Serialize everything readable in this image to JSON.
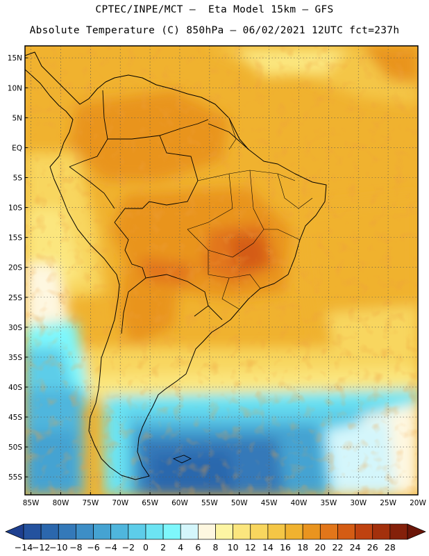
{
  "header": {
    "line1": "CPTEC/INPE/MCT –  Eta Model 15km – GFS",
    "line2": "Absolute Temperature (C) 850hPa – 06/02/2021 12UTC fct=237h"
  },
  "map": {
    "lat_labels": [
      "15N",
      "10N",
      "5N",
      "EQ",
      "5S",
      "10S",
      "15S",
      "20S",
      "25S",
      "30S",
      "35S",
      "40S",
      "45S",
      "50S",
      "55S"
    ],
    "lon_labels": [
      "85W",
      "80W",
      "75W",
      "70W",
      "65W",
      "60W",
      "55W",
      "50W",
      "45W",
      "40W",
      "35W",
      "30W",
      "25W",
      "20W"
    ],
    "lat_values": [
      15,
      10,
      5,
      0,
      -5,
      -10,
      -15,
      -20,
      -25,
      -30,
      -35,
      -40,
      -45,
      -50,
      -55
    ],
    "lon_values": [
      -85,
      -80,
      -75,
      -70,
      -65,
      -60,
      -55,
      -50,
      -45,
      -40,
      -35,
      -30,
      -25,
      -20
    ],
    "extent": {
      "lon_min": -86,
      "lon_max": -20,
      "lat_min": -58,
      "lat_max": 17
    }
  },
  "colorbar": {
    "labels": [
      "-14",
      "-12",
      "-10",
      "-8",
      "-6",
      "-4",
      "-2",
      "0",
      "2",
      "4",
      "6",
      "8",
      "10",
      "12",
      "14",
      "16",
      "18",
      "20",
      "22",
      "24",
      "26",
      "28"
    ],
    "colors": [
      "#1e3f8f",
      "#24529e",
      "#2b67ad",
      "#3479b9",
      "#3d8ec6",
      "#45a3d2",
      "#4fb6dd",
      "#5dcde9",
      "#6ce4f3",
      "#7ef7fc",
      "#d4f6fb",
      "#fef7e0",
      "#fdf5a3",
      "#fbe67e",
      "#f8d65e",
      "#f4c646",
      "#f0b22f",
      "#e9941f",
      "#e2761a",
      "#d45c14",
      "#bf4210",
      "#a3300c",
      "#84200a",
      "#6b1608"
    ]
  }
}
